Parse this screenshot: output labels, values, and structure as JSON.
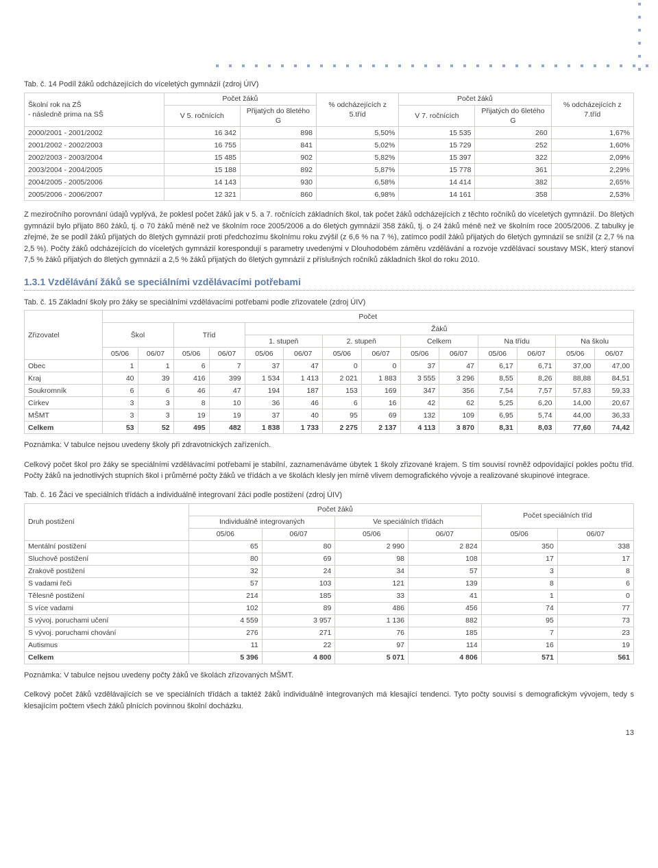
{
  "pageNumber": "13",
  "table1": {
    "title": "Tab. č. 14  Podíl žáků odcházejících do víceletých gymnázií (zdroj ÚIV)",
    "header": {
      "rowLabel": "Školní rok na ZŠ\n- následně prima na SŠ",
      "group1": "Počet žáků",
      "g1c1": "V 5. ročnících",
      "g1c2": "Přijatých do 8letého G",
      "col3": "% odcházejících z 5.tříd",
      "group2": "Počet žáků",
      "g2c1": "V 7. ročnících",
      "g2c2": "Přijatých do 6letého G",
      "col6": "% odcházejících z 7.tříd"
    },
    "rows": [
      {
        "y": "2000/2001 - 2001/2002",
        "a": "16 342",
        "b": "898",
        "c": "5,50%",
        "d": "15 535",
        "e": "260",
        "f": "1,67%"
      },
      {
        "y": "2001/2002 - 2002/2003",
        "a": "16 755",
        "b": "841",
        "c": "5,02%",
        "d": "15 729",
        "e": "252",
        "f": "1,60%"
      },
      {
        "y": "2002/2003 - 2003/2004",
        "a": "15 485",
        "b": "902",
        "c": "5,82%",
        "d": "15 397",
        "e": "322",
        "f": "2,09%"
      },
      {
        "y": "2003/2004 - 2004/2005",
        "a": "15 188",
        "b": "892",
        "c": "5,87%",
        "d": "15 778",
        "e": "361",
        "f": "2,29%"
      },
      {
        "y": "2004/2005 - 2005/2006",
        "a": "14 143",
        "b": "930",
        "c": "6,58%",
        "d": "14 414",
        "e": "382",
        "f": "2,65%"
      },
      {
        "y": "2005/2006 - 2006/2007",
        "a": "12 321",
        "b": "860",
        "c": "6,98%",
        "d": "14 161",
        "e": "358",
        "f": "2,53%"
      }
    ]
  },
  "para1": "Z meziročního porovnání údajů vyplývá, že poklesl počet žáků jak v  5. a 7. ročnících základních škol, tak  počet žáků odcházejících z těchto ročníků do víceletých gymnázií. Do 8letých gymnázií bylo přijato 860 žáků, tj. o 70 žáků méně než ve školním roce 2005/2006 a do 6letých gymnázií 358 žáků, tj. o 24 žáků méně než ve školním roce 2005/2006. Z tabulky je zřejmé, že se podíl žáků přijatých do 8letých gymnázií proti předchozímu školnímu roku zvýšil (z 6,6 % na 7 %), zatímco podíl žáků přijatých do 6letých gymnázií se snížil  (z 2,7 % na 2,5 %). Počty žáků odcházejících do víceletých gymnázií korespondují s parametry uvedenými v Dlouhodobém záměru vzdělávání a rozvoje vzdělávací soustavy MSK, který stanoví 7,5 % žáků přijatých do 8letých gymnázií a 2,5 % žáků přijatých do 6letých gymnázií z příslušných ročníků základních škol do roku 2010.",
  "section": "1.3.1    Vzdělávání žáků se speciálními vzdělávacími potřebami",
  "table2": {
    "title": "Tab. č. 15  Základní školy pro žáky se speciálními vzdělávacími potřebami podle zřizovatele (zdroj ÚIV)",
    "header": {
      "rowLabel": "Zřizovatel",
      "top": "Počet",
      "skol": "Škol",
      "trid": "Tříd",
      "zaku": "Žáků",
      "stup1": "1. stupeň",
      "stup2": "2. stupeň",
      "celkem": "Celkem",
      "natridu": "Na třídu",
      "naskolu": "Na školu",
      "y1": "05/06",
      "y2": "06/07"
    },
    "rows": [
      {
        "n": "Obec",
        "v": [
          "1",
          "1",
          "6",
          "7",
          "37",
          "47",
          "0",
          "0",
          "37",
          "47",
          "6,17",
          "6,71",
          "37,00",
          "47,00"
        ]
      },
      {
        "n": "Kraj",
        "v": [
          "40",
          "39",
          "416",
          "399",
          "1 534",
          "1 413",
          "2 021",
          "1 883",
          "3 555",
          "3 296",
          "8,55",
          "8,26",
          "88,88",
          "84,51"
        ]
      },
      {
        "n": "Soukromník",
        "v": [
          "6",
          "6",
          "46",
          "47",
          "194",
          "187",
          "153",
          "169",
          "347",
          "356",
          "7,54",
          "7,57",
          "57,83",
          "59,33"
        ]
      },
      {
        "n": "Církev",
        "v": [
          "3",
          "3",
          "8",
          "10",
          "36",
          "46",
          "6",
          "16",
          "42",
          "62",
          "5,25",
          "6,20",
          "14,00",
          "20,67"
        ]
      },
      {
        "n": "MŠMT",
        "v": [
          "3",
          "3",
          "19",
          "19",
          "37",
          "40",
          "95",
          "69",
          "132",
          "109",
          "6,95",
          "5,74",
          "44,00",
          "36,33"
        ]
      },
      {
        "n": "Celkem",
        "v": [
          "53",
          "52",
          "495",
          "482",
          "1 838",
          "1 733",
          "2 275",
          "2 137",
          "4 113",
          "3 870",
          "8,31",
          "8,03",
          "77,60",
          "74,42"
        ],
        "bold": true
      }
    ]
  },
  "note1": "Poznámka: V tabulce nejsou uvedeny školy při zdravotnických zařízeních.",
  "para2": "Celkový počet škol pro žáky se speciálními vzdělávacími potřebami je stabilní, zaznamenáváme úbytek 1 školy zřizované krajem. S tím souvisí rovněž odpovídající pokles počtu tříd. Počty žáků na jednotlivých stupních škol i průměrné počty žáků ve třídách a ve školách  klesly jen mírně vlivem demografického vývoje a realizované skupinové integrace.",
  "table3": {
    "title": "Tab. č. 16  Žáci ve speciálních třídách a individuálně integrovaní žáci podle postižení (zdroj ÚIV)",
    "header": {
      "rowLabel": "Druh postižení",
      "top": "Počet žáků",
      "sub1": "Individuálně integrovaných",
      "sub2": "Ve speciálních třídách",
      "right": "Počet  speciálních tříd",
      "y1": "05/06",
      "y2": "06/07"
    },
    "rows": [
      {
        "n": "Mentální postižení",
        "v": [
          "65",
          "80",
          "2 990",
          "2 824",
          "350",
          "338"
        ]
      },
      {
        "n": "Sluchově postižení",
        "v": [
          "80",
          "69",
          "98",
          "108",
          "17",
          "17"
        ]
      },
      {
        "n": "Zrakově postižení",
        "v": [
          "32",
          "24",
          "34",
          "57",
          "3",
          "8"
        ]
      },
      {
        "n": "S vadami řeči",
        "v": [
          "57",
          "103",
          "121",
          "139",
          "8",
          "6"
        ]
      },
      {
        "n": "Tělesně postižení",
        "v": [
          "214",
          "185",
          "33",
          "41",
          "1",
          "0"
        ]
      },
      {
        "n": "S více vadami",
        "v": [
          "102",
          "89",
          "486",
          "456",
          "74",
          "77"
        ]
      },
      {
        "n": "S vývoj. poruchami učení",
        "v": [
          "4 559",
          "3 957",
          "1 136",
          "882",
          "95",
          "73"
        ]
      },
      {
        "n": "S vývoj. poruchami chování",
        "v": [
          "276",
          "271",
          "76",
          "185",
          "7",
          "23"
        ]
      },
      {
        "n": "Autismus",
        "v": [
          "11",
          "22",
          "97",
          "114",
          "16",
          "19"
        ]
      },
      {
        "n": "Celkem",
        "v": [
          "5 396",
          "4 800",
          "5 071",
          "4 806",
          "571",
          "561"
        ],
        "bold": true
      }
    ]
  },
  "note2": "Poznámka: V tabulce nejsou uvedeny počty žáků ve školách zřizovaných MŠMT.",
  "para3": "Celkový počet žáků vzdělávajících se ve speciálních třídách a taktéž žáků individuálně integrovaných má klesající tendenci. Tyto počty souvisí s demografickým vývojem, tedy s klesajícím počtem všech žáků plnících povinnou školní docházku."
}
